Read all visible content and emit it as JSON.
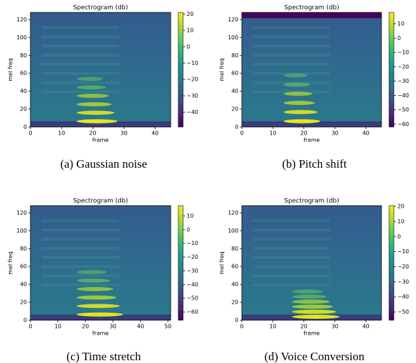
{
  "chart_data": [
    {
      "type": "heatmap",
      "title": "Spectrogram (db)",
      "x_label": "frame",
      "y_label": "mel freq",
      "caption": "(a) Gaussian noise",
      "xlim": [
        0,
        45
      ],
      "ylim": [
        0,
        128
      ],
      "xticks": [
        0,
        10,
        20,
        30,
        40
      ],
      "yticks": [
        0,
        20,
        40,
        60,
        80,
        100,
        120
      ],
      "colorbar_lim": [
        -49,
        21
      ],
      "colorbar_ticks": [
        20,
        10,
        0,
        {
          "value": -10,
          "label": "−10"
        },
        {
          "value": -20,
          "label": "−20"
        },
        {
          "value": -30,
          "label": "−30"
        },
        {
          "value": -40,
          "label": "−40"
        }
      ]
    },
    {
      "type": "heatmap",
      "title": "Spectrogram (db)",
      "x_label": "frame",
      "y_label": "mel freq",
      "caption": "(b) Pitch shift",
      "xlim": [
        0,
        45
      ],
      "ylim": [
        0,
        128
      ],
      "xticks": [
        0,
        10,
        20,
        30,
        40
      ],
      "yticks": [
        0,
        20,
        40,
        60,
        80,
        100,
        120
      ],
      "colorbar_lim": [
        -62,
        18
      ],
      "colorbar_ticks": [
        10,
        0,
        {
          "value": -10,
          "label": "−10"
        },
        {
          "value": -20,
          "label": "−20"
        },
        {
          "value": -30,
          "label": "−30"
        },
        {
          "value": -40,
          "label": "−40"
        },
        {
          "value": -50,
          "label": "−50"
        },
        {
          "value": -60,
          "label": "−60"
        }
      ]
    },
    {
      "type": "heatmap",
      "title": "Spectrogram (db)",
      "x_label": "frame",
      "y_label": "mel freq",
      "caption": "(c) Time stretch",
      "xlim": [
        0,
        51
      ],
      "ylim": [
        0,
        128
      ],
      "xticks": [
        0,
        10,
        20,
        30,
        40,
        50
      ],
      "yticks": [
        0,
        20,
        40,
        60,
        80,
        100,
        120
      ],
      "colorbar_lim": [
        -66,
        17.5
      ],
      "colorbar_ticks": [
        10,
        0,
        {
          "value": -10,
          "label": "−10"
        },
        {
          "value": -20,
          "label": "−20"
        },
        {
          "value": -30,
          "label": "−30"
        },
        {
          "value": -40,
          "label": "−40"
        },
        {
          "value": -50,
          "label": "−50"
        },
        {
          "value": -60,
          "label": "−60"
        }
      ]
    },
    {
      "type": "heatmap",
      "title": "Spectrogram (db)",
      "x_label": "frame",
      "y_label": "mel freq",
      "caption": "(d) Voice Conversion",
      "xlim": [
        0,
        45
      ],
      "ylim": [
        0,
        128
      ],
      "xticks": [
        0,
        10,
        20,
        30,
        40
      ],
      "yticks": [
        0,
        20,
        40,
        60,
        80,
        100,
        120
      ],
      "colorbar_lim": [
        -55.5,
        20.5
      ],
      "colorbar_ticks": [
        20,
        10,
        0,
        {
          "value": -10,
          "label": "−10"
        },
        {
          "value": -20,
          "label": "−20"
        },
        {
          "value": -30,
          "label": "−30"
        },
        {
          "value": -40,
          "label": "−40"
        },
        {
          "value": -50,
          "label": "−50"
        }
      ]
    }
  ]
}
